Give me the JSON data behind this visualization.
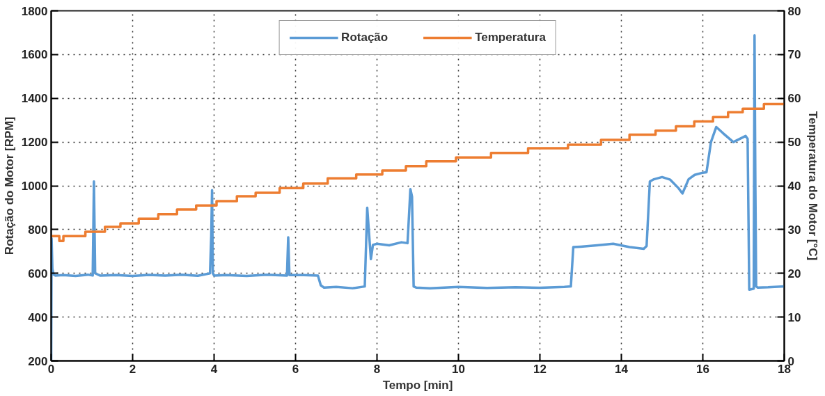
{
  "chart_data": {
    "type": "line",
    "xlabel": "Tempo [min]",
    "ylabel": "Rotação do Motor [RPM]",
    "y2label": "Temperatura do Motor [°C]",
    "xlim": [
      0,
      18
    ],
    "xticks": [
      0,
      2,
      4,
      6,
      8,
      10,
      12,
      14,
      16,
      18
    ],
    "ylim": [
      200,
      1800
    ],
    "yticks": [
      200,
      400,
      600,
      800,
      1000,
      1200,
      1400,
      1600,
      1800
    ],
    "y2lim": [
      0,
      80
    ],
    "y2ticks": [
      0,
      10,
      20,
      30,
      40,
      50,
      60,
      70,
      80
    ],
    "grid": true,
    "legend": "top",
    "line_style": "solid",
    "marker": "none",
    "series": [
      {
        "name": "Rotação",
        "color": "#5b9bd5",
        "x": [
          0,
          0.01,
          0.03,
          0.06,
          0.1,
          0.3,
          0.6,
          0.9,
          1.02,
          1.05,
          1.08,
          1.2,
          1.6,
          2.0,
          2.4,
          2.8,
          3.2,
          3.6,
          3.9,
          3.93,
          3.95,
          3.97,
          4.0,
          4.3,
          4.8,
          5.3,
          5.79,
          5.82,
          5.85,
          6.2,
          6.55,
          6.62,
          6.7,
          7.0,
          7.4,
          7.7,
          7.76,
          7.85,
          7.9,
          8.0,
          8.3,
          8.6,
          8.75,
          8.82,
          8.86,
          8.9,
          8.96,
          9.3,
          10.0,
          10.7,
          11.4,
          12.0,
          12.6,
          12.76,
          12.82,
          13.0,
          13.4,
          13.8,
          14.2,
          14.55,
          14.62,
          14.7,
          14.8,
          15.0,
          15.2,
          15.4,
          15.5,
          15.65,
          15.8,
          16.0,
          16.09,
          16.2,
          16.33,
          16.5,
          16.75,
          17.05,
          17.1,
          17.14,
          17.25,
          17.27,
          17.29,
          17.31,
          17.35,
          17.6,
          18.0
        ],
        "values": [
          200,
          760,
          620,
          595,
          590,
          592,
          588,
          594,
          590,
          1020,
          600,
          590,
          592,
          588,
          593,
          590,
          594,
          589,
          600,
          770,
          980,
          600,
          590,
          592,
          588,
          594,
          590,
          765,
          592,
          592,
          590,
          545,
          535,
          538,
          532,
          540,
          900,
          665,
          730,
          735,
          728,
          742,
          738,
          985,
          950,
          540,
          535,
          532,
          538,
          533,
          536,
          534,
          538,
          540,
          720,
          722,
          728,
          735,
          720,
          712,
          725,
          1020,
          1030,
          1040,
          1028,
          990,
          965,
          1030,
          1050,
          1060,
          1062,
          1200,
          1269,
          1240,
          1200,
          1228,
          1215,
          525,
          530,
          1688,
          1010,
          540,
          535,
          536,
          540
        ]
      },
      {
        "name": "Temperatura",
        "color": "#ed7d31",
        "type": "step",
        "axis": "y2",
        "x": [
          0,
          0.2,
          0.3,
          0.84,
          1.32,
          1.7,
          2.15,
          2.63,
          3.09,
          3.56,
          4.06,
          4.56,
          5.02,
          5.61,
          6.19,
          6.79,
          7.49,
          8.13,
          8.71,
          9.21,
          9.94,
          10.8,
          11.71,
          12.69,
          13.5,
          14.2,
          14.84,
          15.34,
          15.79,
          16.25,
          16.62,
          16.98,
          17.5,
          18
        ],
        "values": [
          28.5,
          27.4,
          28.5,
          29.5,
          30.6,
          31.4,
          32.5,
          33.5,
          34.6,
          35.5,
          36.5,
          37.6,
          38.4,
          39.5,
          40.5,
          41.7,
          42.6,
          43.5,
          44.5,
          45.6,
          46.5,
          47.5,
          48.6,
          49.4,
          50.5,
          51.7,
          52.6,
          53.6,
          54.7,
          55.7,
          56.8,
          57.6,
          58.7,
          58.7
        ]
      }
    ]
  }
}
